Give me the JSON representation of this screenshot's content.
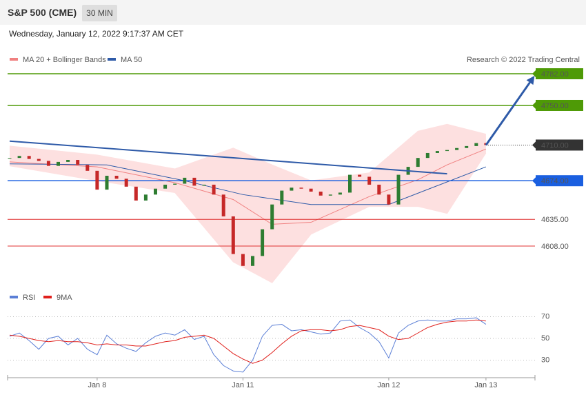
{
  "header": {
    "title": "S&P 500 (CME)",
    "interval": "30 MIN",
    "timestamp": "Wednesday, January 12, 2022 9:17:37 AM CET"
  },
  "chart_data": [
    {
      "type": "candlestick",
      "credit": "Research © 2022 Trading Central",
      "categories": [
        null,
        null,
        null,
        null,
        null,
        null,
        null,
        null,
        null,
        "Jan 8",
        null,
        null,
        null,
        null,
        null,
        null,
        null,
        null,
        null,
        null,
        null,
        null,
        null,
        null,
        "Jan 11",
        null,
        null,
        null,
        null,
        null,
        null,
        null,
        null,
        null,
        null,
        null,
        null,
        null,
        null,
        "Jan 12",
        null,
        null,
        null,
        null,
        null,
        null,
        null,
        null,
        null,
        "Jan 13"
      ],
      "close": [
        4697,
        4699,
        4696,
        4694,
        4689,
        4693,
        4695,
        4690,
        4684,
        4665,
        4679,
        4676,
        4668,
        4654,
        4660,
        4666,
        4670,
        4671,
        4677,
        4669,
        4670,
        4660,
        4638,
        4600,
        4588,
        4598,
        4625,
        4650,
        4664,
        4667,
        4666,
        4663,
        4659,
        4660,
        4662,
        4680,
        4678,
        4670,
        4660,
        4650,
        4680,
        4688,
        4697,
        4702,
        4704,
        4705,
        4707,
        4709,
        4712,
        4710
      ],
      "up_color": "#2e7d32",
      "down_color": "#c62828",
      "series": [
        {
          "name": "MA 20 + Bollinger Bands",
          "color": "#f08080",
          "band_color": "#fde0e0",
          "x": [
            0,
            9,
            17,
            23,
            27,
            31,
            37,
            42,
            45,
            49
          ],
          "values": [
            4693,
            4688,
            4672,
            4655,
            4630,
            4632,
            4658,
            4675,
            4690,
            4706
          ],
          "upper": [
            4709,
            4700,
            4686,
            4707,
            4690,
            4674,
            4682,
            4724,
            4731,
            4721
          ],
          "lower": [
            4689,
            4674,
            4662,
            4592,
            4571,
            4620,
            4648,
            4648,
            4641,
            4702
          ]
        },
        {
          "name": "MA 50",
          "color": "#2e5aa8",
          "x": [
            0,
            10,
            18,
            24,
            31,
            39,
            44,
            49
          ],
          "values": [
            4691,
            4690,
            4674,
            4660,
            4650,
            4650,
            4669,
            4688
          ]
        }
      ],
      "levels": [
        {
          "value": 4782,
          "label": "4782.00",
          "color": "#4e9a06",
          "boxed": true,
          "style": "solid"
        },
        {
          "value": 4750,
          "label": "4750.00",
          "color": "#4e9a06",
          "boxed": true,
          "style": "solid"
        },
        {
          "value": 4710,
          "label": "4710.00",
          "color": "#333333",
          "boxed": true,
          "style": "dotted"
        },
        {
          "value": 4674,
          "label": "4674.00",
          "color": "#1a5fe0",
          "boxed": true,
          "style": "solid"
        },
        {
          "value": 4635,
          "label": "4635.00",
          "color": "#e03030",
          "boxed": false,
          "style": "solid"
        },
        {
          "value": 4608,
          "label": "4608.00",
          "color": "#e03030",
          "boxed": false,
          "style": "solid"
        }
      ],
      "trendline": {
        "color": "#2e5aa8",
        "points": [
          [
            0,
            4714
          ],
          [
            45,
            4681
          ]
        ]
      },
      "arrow": {
        "color": "#2e5aa8",
        "points": [
          [
            49,
            4710
          ],
          [
            54,
            4780
          ]
        ]
      },
      "ylim": [
        4566,
        4792
      ]
    },
    {
      "type": "line",
      "series": [
        {
          "name": "RSI",
          "color": "#5b7fd6",
          "values": [
            52,
            55,
            48,
            40,
            50,
            52,
            44,
            50,
            40,
            35,
            53,
            45,
            41,
            38,
            46,
            52,
            55,
            53,
            58,
            49,
            52,
            35,
            25,
            20,
            19,
            30,
            52,
            62,
            63,
            57,
            58,
            56,
            54,
            55,
            66,
            67,
            60,
            55,
            47,
            32,
            55,
            62,
            66,
            67,
            66,
            66,
            68,
            68,
            69,
            63
          ]
        },
        {
          "name": "9MA",
          "color": "#e0201c",
          "values": [
            53,
            52,
            50,
            48,
            47,
            48,
            47,
            47,
            46,
            44,
            45,
            44,
            44,
            43,
            43,
            45,
            47,
            48,
            51,
            52,
            53,
            50,
            43,
            36,
            31,
            27,
            30,
            37,
            45,
            52,
            57,
            58,
            58,
            57,
            58,
            61,
            62,
            60,
            58,
            52,
            49,
            50,
            55,
            60,
            63,
            65,
            66,
            66,
            67,
            66
          ]
        }
      ],
      "ylim": [
        14,
        84
      ],
      "yticks": [
        30,
        50,
        70
      ],
      "grid": true
    }
  ]
}
